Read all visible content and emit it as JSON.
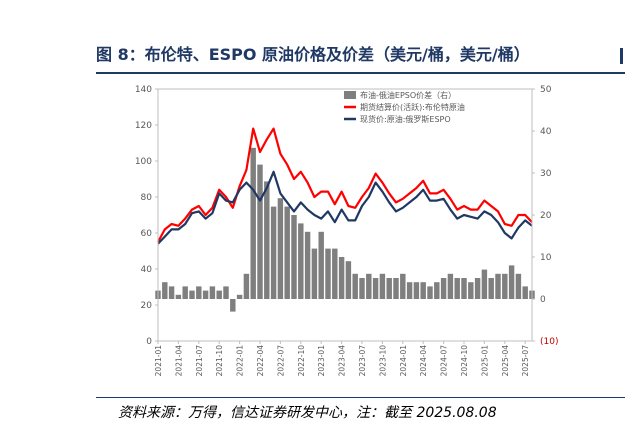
{
  "figure": {
    "title": "图 8：布伦特、ESPO 原油价格及价差（美元/桶，美元/桶）",
    "source": "资料来源：万得，信达证券研发中心，注：截至 2025.08.08"
  },
  "colors": {
    "title": "#1f3864",
    "brent": "#ff0000",
    "espo": "#1f3864",
    "spread": "#7f7f7f",
    "negative_tick": "#c00000"
  },
  "chart_data": {
    "type": "line",
    "title": "",
    "legend_placement": "top-right",
    "grid": false,
    "x_range": [
      "2021-01",
      "2025-08"
    ],
    "x_ticks": [
      "2021-01",
      "2021-04",
      "2021-07",
      "2021-10",
      "2022-01",
      "2022-04",
      "2022-07",
      "2022-10",
      "2023-01",
      "2023-04",
      "2023-07",
      "2023-10",
      "2024-01",
      "2024-04",
      "2024-07",
      "2024-10",
      "2025-01",
      "2025-04",
      "2025-07"
    ],
    "y_left": {
      "range": [
        0,
        140
      ],
      "ticks": [
        0,
        20,
        40,
        60,
        80,
        100,
        120,
        140
      ]
    },
    "y_right": {
      "range": [
        -10,
        50
      ],
      "ticks": [
        "(10)",
        "0",
        "10",
        "20",
        "30",
        "40",
        "50"
      ]
    },
    "series": [
      {
        "name": "布油-俄油EPSO价差（右）",
        "type": "bar",
        "axis": "right",
        "x": [
          "2021-01",
          "2021-02",
          "2021-03",
          "2021-04",
          "2021-05",
          "2021-06",
          "2021-07",
          "2021-08",
          "2021-09",
          "2021-10",
          "2021-11",
          "2021-12",
          "2022-01",
          "2022-02",
          "2022-03",
          "2022-04",
          "2022-05",
          "2022-06",
          "2022-07",
          "2022-08",
          "2022-09",
          "2022-10",
          "2022-11",
          "2022-12",
          "2023-01",
          "2023-02",
          "2023-03",
          "2023-04",
          "2023-05",
          "2023-06",
          "2023-07",
          "2023-08",
          "2023-09",
          "2023-10",
          "2023-11",
          "2023-12",
          "2024-01",
          "2024-02",
          "2024-03",
          "2024-04",
          "2024-05",
          "2024-06",
          "2024-07",
          "2024-08",
          "2024-09",
          "2024-10",
          "2024-11",
          "2024-12",
          "2025-01",
          "2025-02",
          "2025-03",
          "2025-04",
          "2025-05",
          "2025-06",
          "2025-07",
          "2025-08"
        ],
        "values": [
          2,
          4,
          3,
          1,
          3,
          2,
          3,
          2,
          3,
          2,
          3,
          -3,
          1,
          6,
          36,
          32,
          28,
          22,
          24,
          22,
          20,
          18,
          16,
          12,
          16,
          12,
          12,
          10,
          9,
          6,
          5,
          6,
          5,
          6,
          5,
          5,
          6,
          4,
          4,
          4,
          3,
          4,
          5,
          6,
          5,
          5,
          4,
          5,
          7,
          5,
          6,
          6,
          8,
          6,
          3,
          2
        ]
      },
      {
        "name": "期货结算价(活跃):布伦特原油",
        "type": "line",
        "axis": "left",
        "x": [
          "2021-01",
          "2021-02",
          "2021-03",
          "2021-04",
          "2021-05",
          "2021-06",
          "2021-07",
          "2021-08",
          "2021-09",
          "2021-10",
          "2021-11",
          "2021-12",
          "2022-01",
          "2022-02",
          "2022-03",
          "2022-04",
          "2022-05",
          "2022-06",
          "2022-07",
          "2022-08",
          "2022-09",
          "2022-10",
          "2022-11",
          "2022-12",
          "2023-01",
          "2023-02",
          "2023-03",
          "2023-04",
          "2023-05",
          "2023-06",
          "2023-07",
          "2023-08",
          "2023-09",
          "2023-10",
          "2023-11",
          "2023-12",
          "2024-01",
          "2024-02",
          "2024-03",
          "2024-04",
          "2024-05",
          "2024-06",
          "2024-07",
          "2024-08",
          "2024-09",
          "2024-10",
          "2024-11",
          "2024-12",
          "2025-01",
          "2025-02",
          "2025-03",
          "2025-04",
          "2025-05",
          "2025-06",
          "2025-07",
          "2025-08"
        ],
        "values": [
          55,
          62,
          65,
          64,
          68,
          73,
          75,
          70,
          74,
          84,
          80,
          74,
          86,
          95,
          118,
          105,
          112,
          118,
          104,
          98,
          90,
          94,
          88,
          80,
          83,
          83,
          76,
          83,
          75,
          74,
          80,
          85,
          93,
          88,
          82,
          77,
          79,
          82,
          85,
          89,
          82,
          82,
          84,
          79,
          73,
          75,
          73,
          73,
          78,
          75,
          72,
          65,
          64,
          70,
          70,
          66
        ]
      },
      {
        "name": "现货价:原油:俄罗斯ESPO",
        "type": "line",
        "axis": "left",
        "x": [
          "2021-01",
          "2021-02",
          "2021-03",
          "2021-04",
          "2021-05",
          "2021-06",
          "2021-07",
          "2021-08",
          "2021-09",
          "2021-10",
          "2021-11",
          "2021-12",
          "2022-01",
          "2022-02",
          "2022-03",
          "2022-04",
          "2022-05",
          "2022-06",
          "2022-07",
          "2022-08",
          "2022-09",
          "2022-10",
          "2022-11",
          "2022-12",
          "2023-01",
          "2023-02",
          "2023-03",
          "2023-04",
          "2023-05",
          "2023-06",
          "2023-07",
          "2023-08",
          "2023-09",
          "2023-10",
          "2023-11",
          "2023-12",
          "2024-01",
          "2024-02",
          "2024-03",
          "2024-04",
          "2024-05",
          "2024-06",
          "2024-07",
          "2024-08",
          "2024-09",
          "2024-10",
          "2024-11",
          "2024-12",
          "2025-01",
          "2025-02",
          "2025-03",
          "2025-04",
          "2025-05",
          "2025-06",
          "2025-07",
          "2025-08"
        ],
        "values": [
          54,
          58,
          62,
          62,
          65,
          71,
          72,
          68,
          71,
          82,
          78,
          77,
          84,
          88,
          84,
          78,
          85,
          94,
          82,
          77,
          72,
          77,
          73,
          70,
          68,
          72,
          66,
          73,
          67,
          67,
          75,
          80,
          88,
          83,
          77,
          72,
          74,
          77,
          80,
          84,
          78,
          78,
          79,
          73,
          68,
          70,
          69,
          68,
          72,
          70,
          66,
          60,
          57,
          63,
          67,
          64
        ]
      }
    ]
  }
}
